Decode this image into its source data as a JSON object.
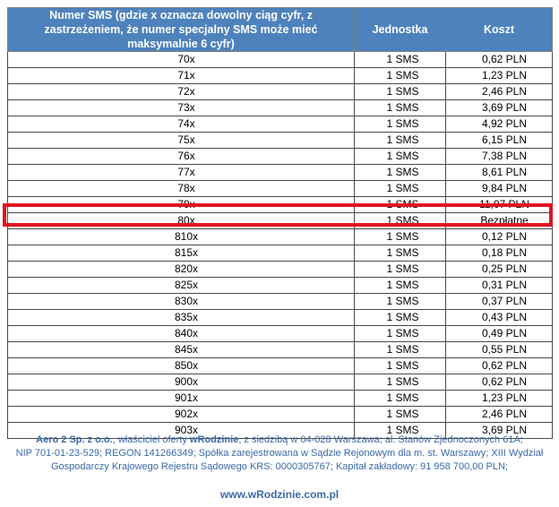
{
  "table": {
    "headers": [
      "Numer SMS (gdzie x oznacza dowolny ciąg cyfr, z zastrzeżeniem, że numer specjalny SMS może mieć maksymalnie 6 cyfr)",
      "Jednostka",
      "Koszt"
    ],
    "rows": [
      [
        "70x",
        "1 SMS",
        "0,62 PLN"
      ],
      [
        "71x",
        "1 SMS",
        "1,23 PLN"
      ],
      [
        "72x",
        "1 SMS",
        "2,46 PLN"
      ],
      [
        "73x",
        "1 SMS",
        "3,69 PLN"
      ],
      [
        "74x",
        "1 SMS",
        "4,92 PLN"
      ],
      [
        "75x",
        "1 SMS",
        "6,15 PLN"
      ],
      [
        "76x",
        "1 SMS",
        "7,38 PLN"
      ],
      [
        "77x",
        "1 SMS",
        "8,61 PLN"
      ],
      [
        "78x",
        "1 SMS",
        "9,84 PLN"
      ],
      [
        "79x",
        "1 SMS",
        "11,07 PLN"
      ],
      [
        "80x",
        "1 SMS",
        "Bezpłatne"
      ],
      [
        "810x",
        "1 SMS",
        "0,12 PLN"
      ],
      [
        "815x",
        "1 SMS",
        "0,18 PLN"
      ],
      [
        "820x",
        "1 SMS",
        "0,25 PLN"
      ],
      [
        "825x",
        "1 SMS",
        "0,31 PLN"
      ],
      [
        "830x",
        "1 SMS",
        "0,37 PLN"
      ],
      [
        "835x",
        "1 SMS",
        "0,43 PLN"
      ],
      [
        "840x",
        "1 SMS",
        "0,49 PLN"
      ],
      [
        "845x",
        "1 SMS",
        "0,55 PLN"
      ],
      [
        "850x",
        "1 SMS",
        "0,62 PLN"
      ],
      [
        "900x",
        "1 SMS",
        "0,62 PLN"
      ],
      [
        "901x",
        "1 SMS",
        "1,23 PLN"
      ],
      [
        "902x",
        "1 SMS",
        "2,46 PLN"
      ],
      [
        "903x",
        "1 SMS",
        "3,69 PLN"
      ]
    ]
  },
  "footer": {
    "company": "Aero 2 Sp. z o.o.",
    "text_1": ", właściciel oferty ",
    "brand": "wRodzinie",
    "text_2": ", z siedzibą w 04-028 Warszawa; al. Stanów Zjednoczonych 61A;",
    "line_2": "NIP 701-01-23-529; REGON 141266349; Spółka zarejestrowana w Sądzie Rejonowym dla m. st. Warszawy; XIII Wydział",
    "line_3": "Gospodarczy Krajowego Rejestru Sądowego KRS: 0000305767; Kapitał zakładowy: 91 958 700,00 PLN;",
    "website": "www.wRodzinie.com.pl"
  },
  "colors": {
    "header_bg": "#4e82bd",
    "highlight_border": "#e0151f",
    "footer_text": "#3a6aa9"
  }
}
